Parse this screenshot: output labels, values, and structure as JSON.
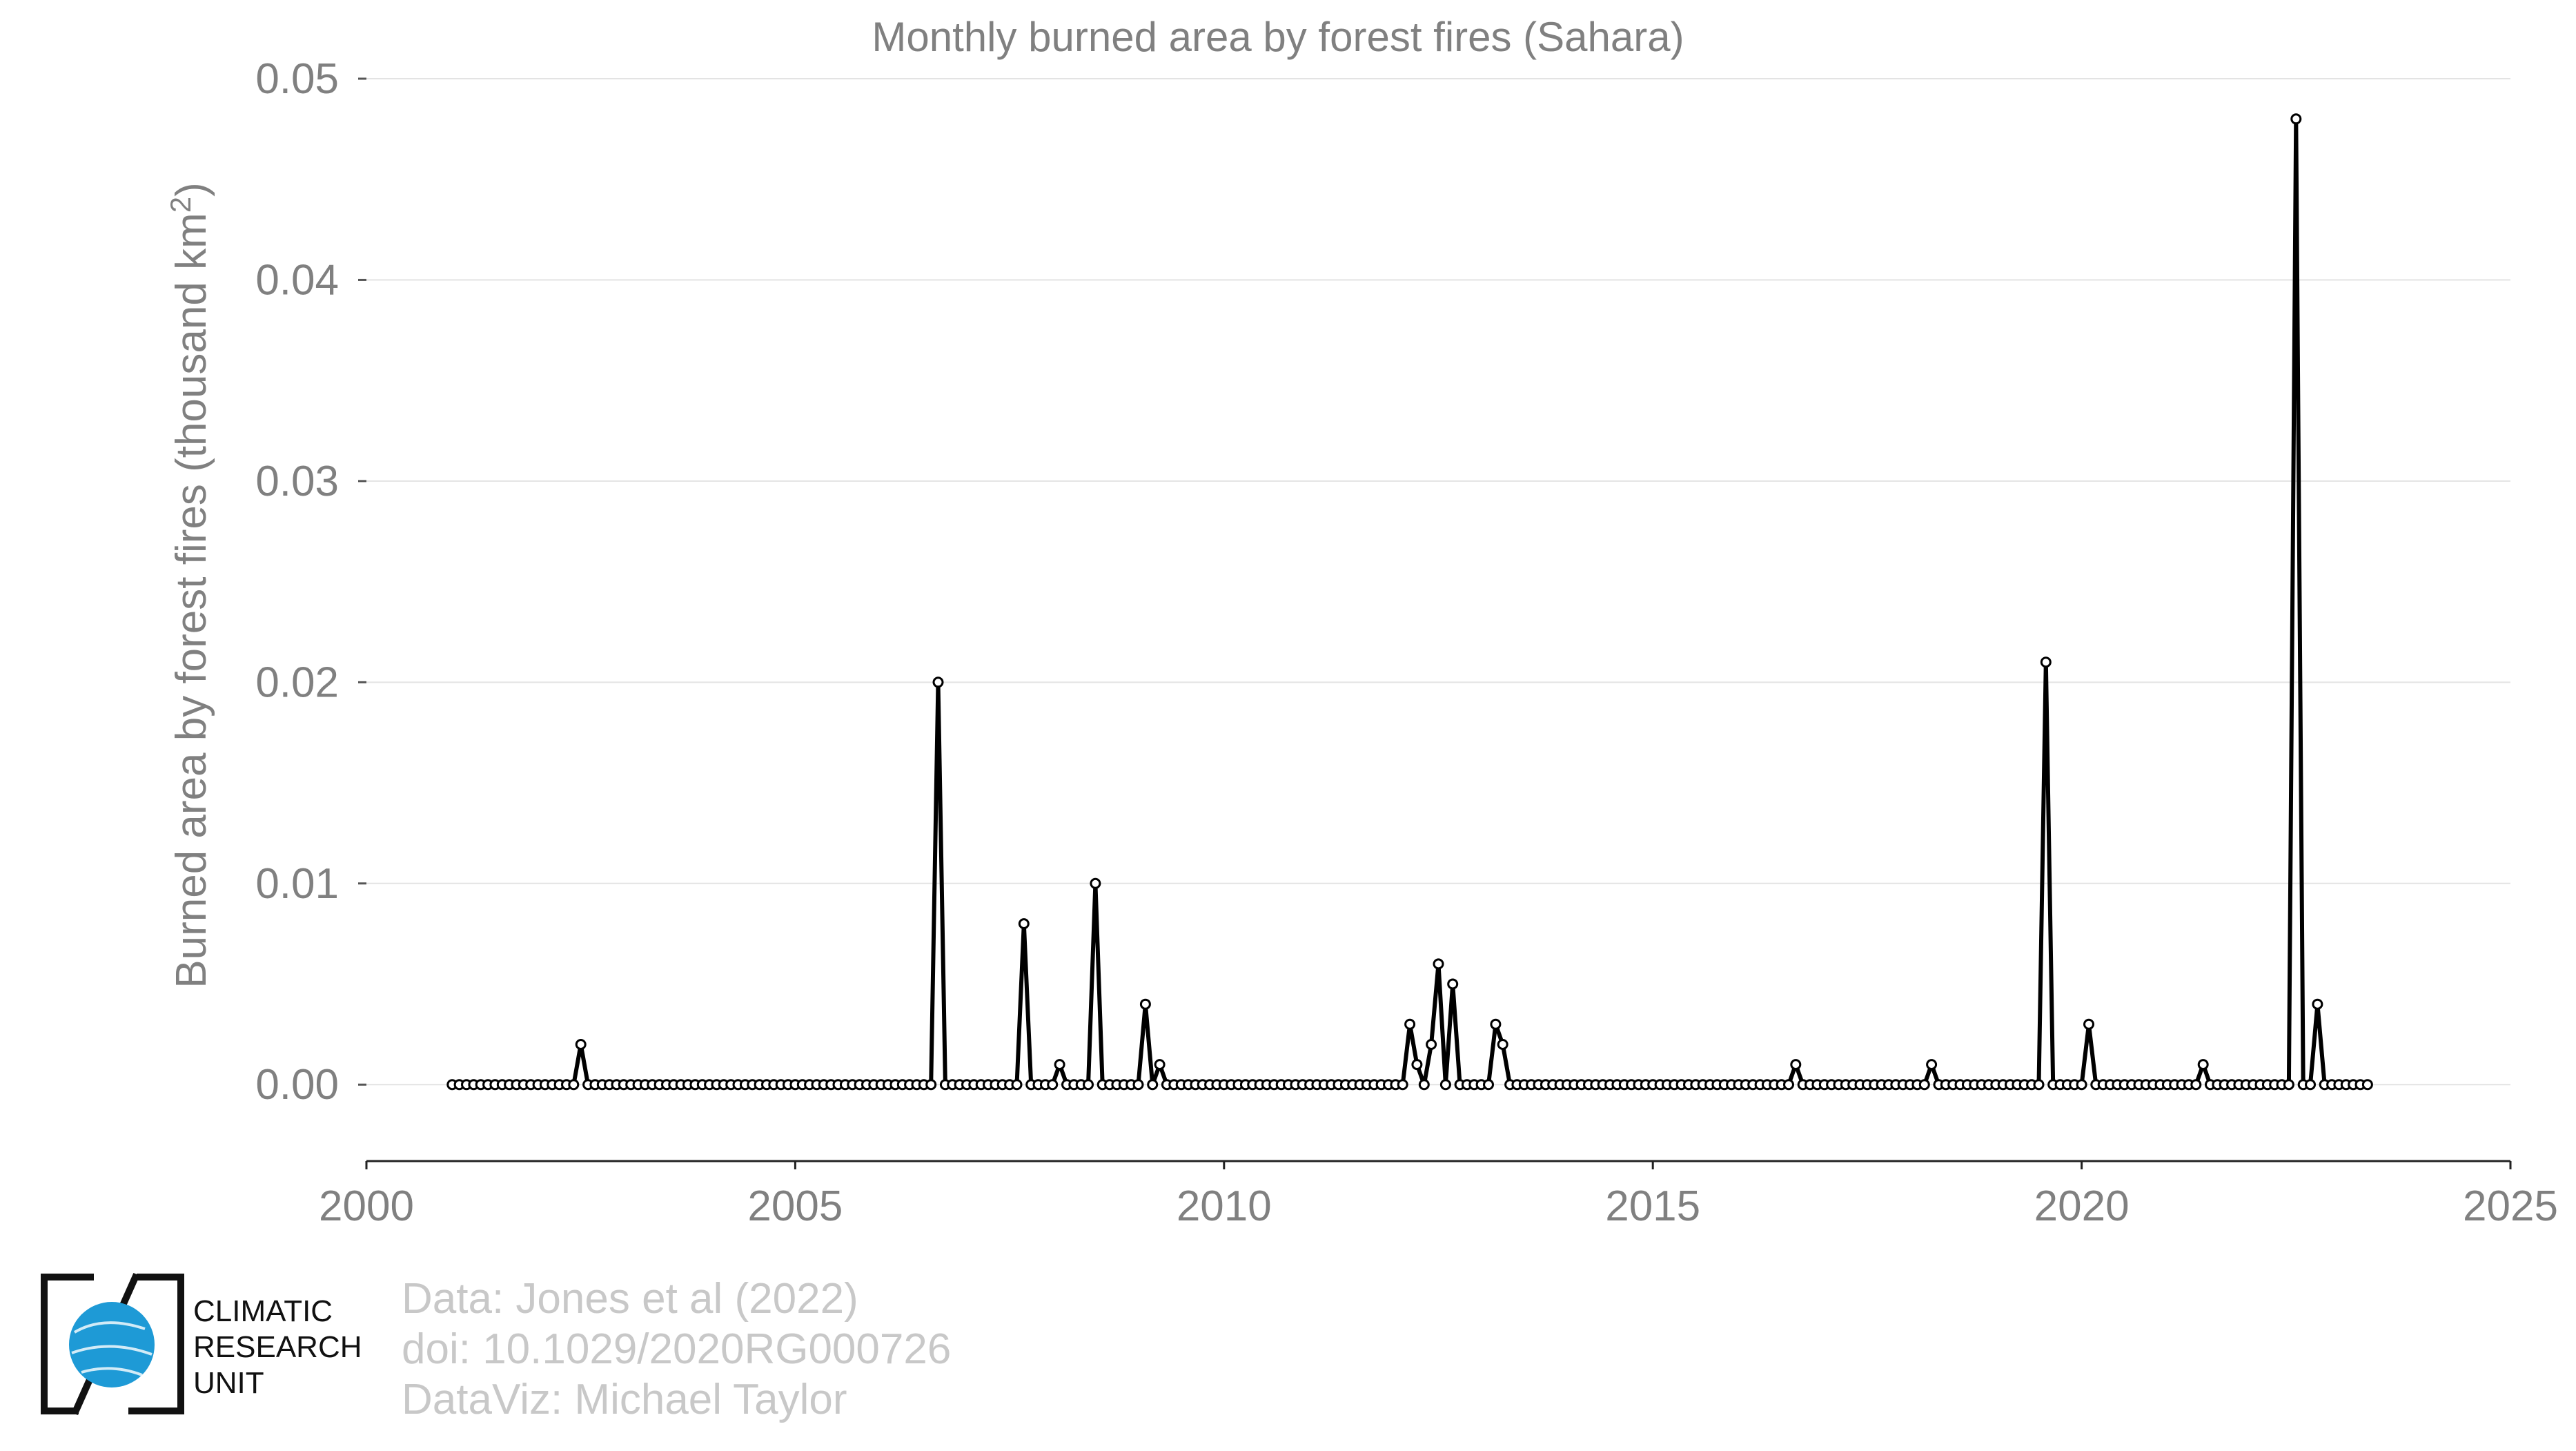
{
  "chart_data": {
    "type": "line",
    "title": "Monthly burned area by forest fires (Sahara)",
    "ylabel": "Burned area by forest fires (thousand km",
    "ylabel_superscript": "2",
    "ylabel_suffix": ")",
    "xlabel": "",
    "xlim": [
      2000,
      2025
    ],
    "ylim": [
      -0.0038,
      0.05
    ],
    "x_ticks": [
      "2000",
      "2005",
      "2010",
      "2015",
      "2020",
      "2025"
    ],
    "y_ticks": [
      "0.00",
      "0.01",
      "0.02",
      "0.03",
      "0.04",
      "0.05"
    ],
    "grid": "horizontal",
    "series_color": "#000000",
    "start": "2001-01",
    "end": "2023-05",
    "values": [
      0,
      0,
      0,
      0,
      0,
      0,
      0,
      0,
      0,
      0,
      0,
      0,
      0,
      0,
      0,
      0,
      0,
      0,
      0.002,
      0,
      0,
      0,
      0,
      0,
      0,
      0,
      0,
      0,
      0,
      0,
      0,
      0,
      0,
      0,
      0,
      0,
      0,
      0,
      0,
      0,
      0,
      0,
      0,
      0,
      0,
      0,
      0,
      0,
      0,
      0,
      0,
      0,
      0,
      0,
      0,
      0,
      0,
      0,
      0,
      0,
      0,
      0,
      0,
      0,
      0,
      0,
      0,
      0,
      0.02,
      0,
      0,
      0,
      0,
      0,
      0,
      0,
      0,
      0,
      0,
      0,
      0.008,
      0,
      0,
      0,
      0,
      0.001,
      0,
      0,
      0,
      0,
      0.01,
      0,
      0,
      0,
      0,
      0,
      0,
      0.004,
      0,
      0.001,
      0,
      0,
      0,
      0,
      0,
      0,
      0,
      0,
      0,
      0,
      0,
      0,
      0,
      0,
      0,
      0,
      0,
      0,
      0,
      0,
      0,
      0,
      0,
      0,
      0,
      0,
      0,
      0,
      0,
      0,
      0,
      0,
      0,
      0,
      0.003,
      0.001,
      0,
      0.002,
      0.006,
      0,
      0.005,
      0,
      0,
      0,
      0,
      0,
      0.003,
      0.002,
      0,
      0,
      0,
      0,
      0,
      0,
      0,
      0,
      0,
      0,
      0,
      0,
      0,
      0,
      0,
      0,
      0,
      0,
      0,
      0,
      0,
      0,
      0,
      0,
      0,
      0,
      0,
      0,
      0,
      0,
      0,
      0,
      0,
      0,
      0,
      0,
      0,
      0,
      0,
      0,
      0.001,
      0,
      0,
      0,
      0,
      0,
      0,
      0,
      0,
      0,
      0,
      0,
      0,
      0,
      0,
      0,
      0,
      0,
      0,
      0.001,
      0,
      0,
      0,
      0,
      0,
      0,
      0,
      0,
      0,
      0,
      0,
      0,
      0,
      0,
      0,
      0.021,
      0,
      0,
      0,
      0,
      0,
      0.003,
      0,
      0,
      0,
      0,
      0,
      0,
      0,
      0,
      0,
      0,
      0,
      0,
      0,
      0,
      0,
      0.001,
      0,
      0,
      0,
      0,
      0,
      0,
      0,
      0,
      0,
      0,
      0,
      0,
      0.048,
      0,
      0,
      0.004,
      0,
      0,
      0,
      0,
      0,
      0,
      0
    ]
  },
  "credits": {
    "line1": "Data: Jones et al (2022)",
    "line2": "doi: 10.1029/2020RG000726",
    "line3": "DataViz: Michael Taylor"
  },
  "logo": {
    "line1": "CLIMATIC",
    "line2": "RESEARCH",
    "line3": "UNIT",
    "globe_color": "#1e9ad6"
  }
}
